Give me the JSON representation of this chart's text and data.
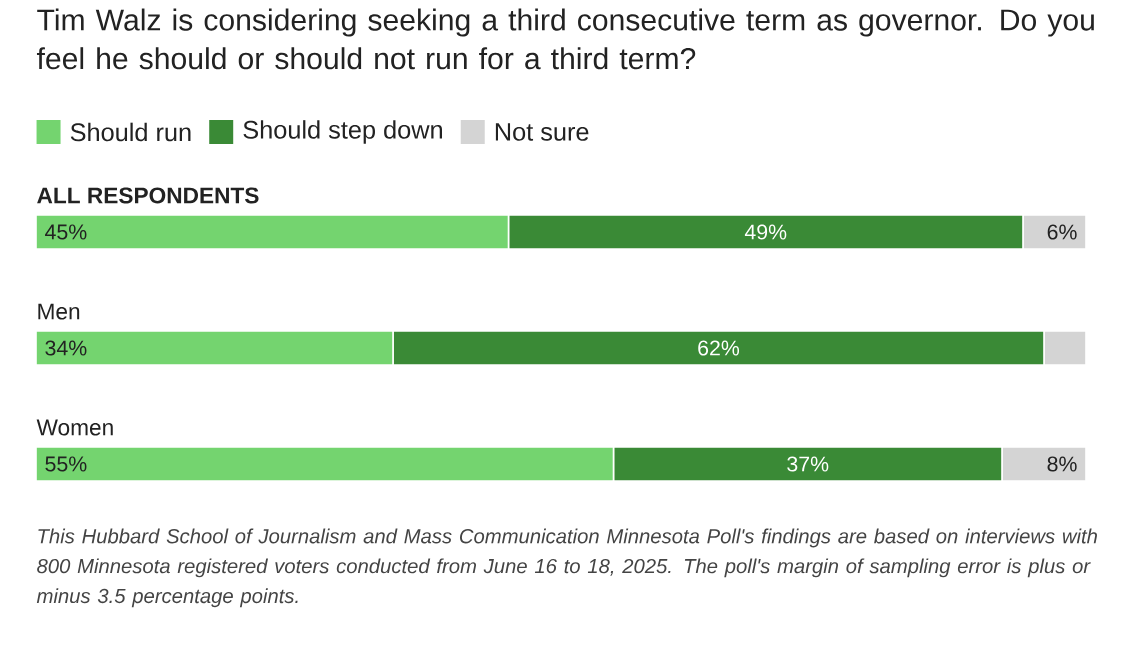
{
  "chart_data": {
    "type": "bar",
    "orientation": "horizontal",
    "stacked": true,
    "title": "Tim Walz is considering seeking a third consecutive term as governor. Do you feel he should or should not run for a third term?",
    "categories": [
      "ALL RESPONDENTS",
      "Men",
      "Women"
    ],
    "series": [
      {
        "name": "Should run",
        "color": "#74d46f",
        "values": [
          45,
          34,
          55
        ],
        "value_labels": [
          "45%",
          "34%",
          "55%"
        ]
      },
      {
        "name": "Should step down",
        "color": "#3a8a36",
        "values": [
          49,
          62,
          37
        ],
        "value_labels": [
          "49%",
          "62%",
          "37%"
        ]
      },
      {
        "name": "Not sure",
        "color": "#d4d4d4",
        "values": [
          6,
          4,
          8
        ],
        "value_labels": [
          "6%",
          null,
          "8%"
        ]
      }
    ],
    "xlim": [
      0,
      100
    ],
    "legend": "top left",
    "annotations": [
      "This Hubbard School of Journalism and Mass Communication Minnesota Poll's findings are based on interviews with 800 Minnesota registered voters conducted from June 16 to 18, 2025. The poll's margin of sampling error is plus or minus 3.5 percentage points."
    ]
  }
}
